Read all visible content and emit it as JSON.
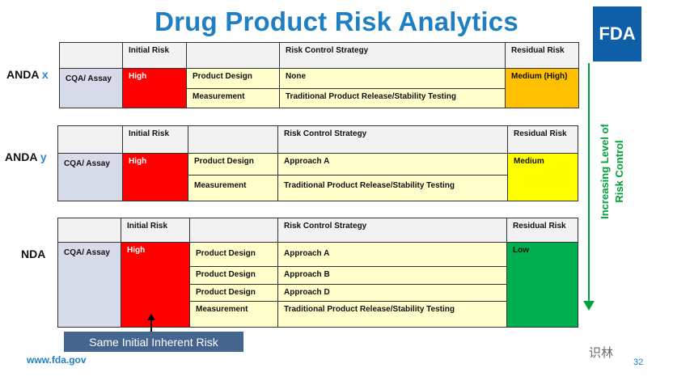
{
  "title": "Drug Product Risk Analytics",
  "logo": "FDA",
  "headers": {
    "initial": "Initial Risk",
    "strategy": "Risk Control Strategy",
    "residual": "Residual Risk"
  },
  "tables": [
    {
      "label": "ANDA",
      "suffix": "x",
      "cqa": "CQA/ Assay",
      "initial": "High",
      "rows": [
        {
          "factor": "Product Design",
          "strategy": "None"
        },
        {
          "factor": "Measurement",
          "strategy": "Traditional Product Release/Stability Testing"
        }
      ],
      "residual": "Medium (High)"
    },
    {
      "label": "ANDA",
      "suffix": "y",
      "cqa": "CQA/ Assay",
      "initial": "High",
      "rows": [
        {
          "factor": "Product Design",
          "strategy": "Approach A"
        },
        {
          "factor": "Measurement",
          "strategy": "Traditional Product Release/Stability Testing"
        }
      ],
      "residual": "Medium"
    },
    {
      "label": "NDA",
      "suffix": "",
      "cqa": "CQA/ Assay",
      "initial": "High",
      "rows": [
        {
          "factor": "Product Design",
          "strategy": "Approach A"
        },
        {
          "factor": "Product Design",
          "strategy": "Approach B"
        },
        {
          "factor": "Product Design",
          "strategy": "Approach D"
        },
        {
          "factor": "Measurement",
          "strategy": "Traditional Product Release/Stability Testing"
        }
      ],
      "residual": "Low"
    }
  ],
  "side_text": [
    "Increasing Level of",
    "Risk Control"
  ],
  "callout": "Same Initial Inherent Risk",
  "url": "www.fda.gov",
  "page": "32",
  "watermark": "识林",
  "colors": {
    "title": "#1f7fc1",
    "high": "#ff0000",
    "medium_high": "#ffc000",
    "medium": "#ffff00",
    "low": "#00b050",
    "arrow": "#00a13a"
  }
}
